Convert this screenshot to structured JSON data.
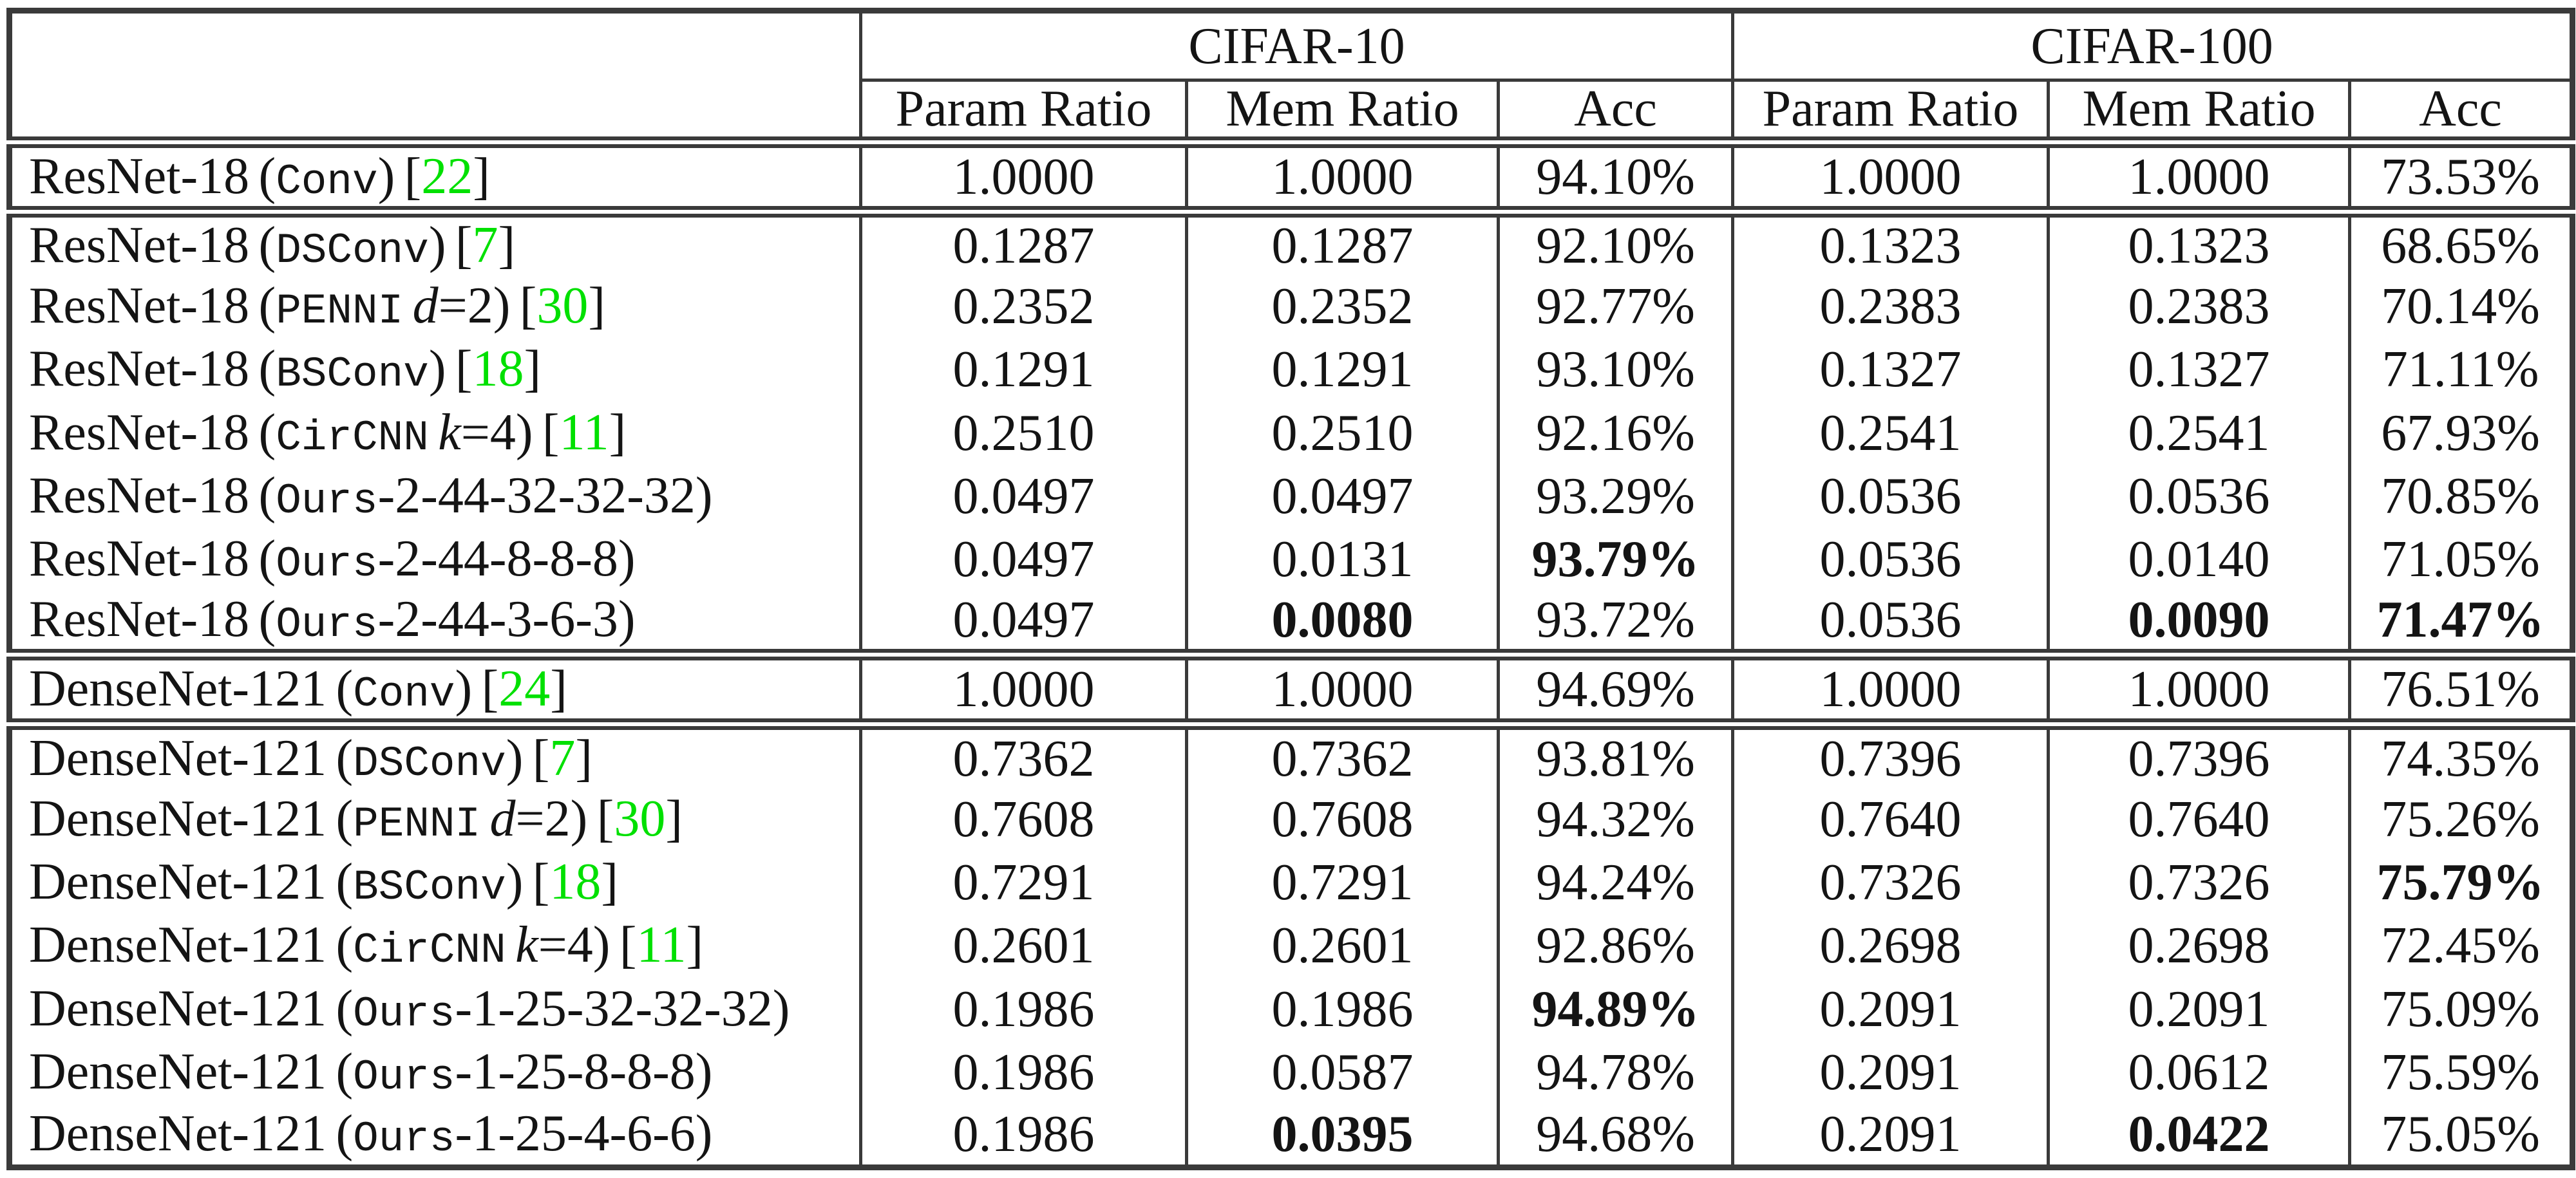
{
  "table": {
    "groups": [
      "CIFAR-10",
      "CIFAR-100"
    ],
    "sub_headers": [
      "Param Ratio",
      "Mem Ratio",
      "Acc"
    ],
    "punct": {
      "open": "(",
      "close": ")",
      "cite_open": "[",
      "cite_close": "]"
    },
    "colors": {
      "citation_green": "#00E000",
      "border": "#3a3a3a"
    },
    "rows": [
      {
        "family": "ResNet-18",
        "method": "Conv",
        "mvar": "",
        "tail": "",
        "cite": "22",
        "double_top": true,
        "values": [
          "1.0000",
          "1.0000",
          "94.10%",
          "1.0000",
          "1.0000",
          "73.53%"
        ],
        "bold": [
          0,
          0,
          0,
          0,
          0,
          0
        ]
      },
      {
        "family": "ResNet-18",
        "method": "DSConv",
        "mvar": "",
        "tail": "",
        "cite": "7",
        "double_top": true,
        "values": [
          "0.1287",
          "0.1287",
          "92.10%",
          "0.1323",
          "0.1323",
          "68.65%"
        ],
        "bold": [
          0,
          0,
          0,
          0,
          0,
          0
        ]
      },
      {
        "family": "ResNet-18",
        "method": "PENNI",
        "mvar": "d",
        "tail": "=2",
        "cite": "30",
        "double_top": false,
        "values": [
          "0.2352",
          "0.2352",
          "92.77%",
          "0.2383",
          "0.2383",
          "70.14%"
        ],
        "bold": [
          0,
          0,
          0,
          0,
          0,
          0
        ]
      },
      {
        "family": "ResNet-18",
        "method": "BSConv",
        "mvar": "",
        "tail": "",
        "cite": "18",
        "double_top": false,
        "values": [
          "0.1291",
          "0.1291",
          "93.10%",
          "0.1327",
          "0.1327",
          "71.11%"
        ],
        "bold": [
          0,
          0,
          0,
          0,
          0,
          0
        ]
      },
      {
        "family": "ResNet-18",
        "method": "CirCNN",
        "mvar": "k",
        "tail": "=4",
        "cite": "11",
        "double_top": false,
        "values": [
          "0.2510",
          "0.2510",
          "92.16%",
          "0.2541",
          "0.2541",
          "67.93%"
        ],
        "bold": [
          0,
          0,
          0,
          0,
          0,
          0
        ]
      },
      {
        "family": "ResNet-18",
        "method": "Ours",
        "mvar": "",
        "tail": "-2-44-32-32-32",
        "cite": "",
        "double_top": false,
        "values": [
          "0.0497",
          "0.0497",
          "93.29%",
          "0.0536",
          "0.0536",
          "70.85%"
        ],
        "bold": [
          0,
          0,
          0,
          0,
          0,
          0
        ]
      },
      {
        "family": "ResNet-18",
        "method": "Ours",
        "mvar": "",
        "tail": "-2-44-8-8-8",
        "cite": "",
        "double_top": false,
        "values": [
          "0.0497",
          "0.0131",
          "93.79%",
          "0.0536",
          "0.0140",
          "71.05%"
        ],
        "bold": [
          0,
          0,
          1,
          0,
          0,
          0
        ]
      },
      {
        "family": "ResNet-18",
        "method": "Ours",
        "mvar": "",
        "tail": "-2-44-3-6-3",
        "cite": "",
        "double_top": false,
        "values": [
          "0.0497",
          "0.0080",
          "93.72%",
          "0.0536",
          "0.0090",
          "71.47%"
        ],
        "bold": [
          0,
          1,
          0,
          0,
          1,
          1
        ]
      },
      {
        "family": "DenseNet-121",
        "method": "Conv",
        "mvar": "",
        "tail": "",
        "cite": "24",
        "double_top": true,
        "values": [
          "1.0000",
          "1.0000",
          "94.69%",
          "1.0000",
          "1.0000",
          "76.51%"
        ],
        "bold": [
          0,
          0,
          0,
          0,
          0,
          0
        ]
      },
      {
        "family": "DenseNet-121",
        "method": "DSConv",
        "mvar": "",
        "tail": "",
        "cite": "7",
        "double_top": true,
        "values": [
          "0.7362",
          "0.7362",
          "93.81%",
          "0.7396",
          "0.7396",
          "74.35%"
        ],
        "bold": [
          0,
          0,
          0,
          0,
          0,
          0
        ]
      },
      {
        "family": "DenseNet-121",
        "method": "PENNI",
        "mvar": "d",
        "tail": "=2",
        "cite": "30",
        "double_top": false,
        "values": [
          "0.7608",
          "0.7608",
          "94.32%",
          "0.7640",
          "0.7640",
          "75.26%"
        ],
        "bold": [
          0,
          0,
          0,
          0,
          0,
          0
        ]
      },
      {
        "family": "DenseNet-121",
        "method": "BSConv",
        "mvar": "",
        "tail": "",
        "cite": "18",
        "double_top": false,
        "values": [
          "0.7291",
          "0.7291",
          "94.24%",
          "0.7326",
          "0.7326",
          "75.79%"
        ],
        "bold": [
          0,
          0,
          0,
          0,
          0,
          1
        ]
      },
      {
        "family": "DenseNet-121",
        "method": "CirCNN",
        "mvar": "k",
        "tail": "=4",
        "cite": "11",
        "double_top": false,
        "values": [
          "0.2601",
          "0.2601",
          "92.86%",
          "0.2698",
          "0.2698",
          "72.45%"
        ],
        "bold": [
          0,
          0,
          0,
          0,
          0,
          0
        ]
      },
      {
        "family": "DenseNet-121",
        "method": "Ours",
        "mvar": "",
        "tail": "-1-25-32-32-32",
        "cite": "",
        "double_top": false,
        "values": [
          "0.1986",
          "0.1986",
          "94.89%",
          "0.2091",
          "0.2091",
          "75.09%"
        ],
        "bold": [
          0,
          0,
          1,
          0,
          0,
          0
        ]
      },
      {
        "family": "DenseNet-121",
        "method": "Ours",
        "mvar": "",
        "tail": "-1-25-8-8-8",
        "cite": "",
        "double_top": false,
        "values": [
          "0.1986",
          "0.0587",
          "94.78%",
          "0.2091",
          "0.0612",
          "75.59%"
        ],
        "bold": [
          0,
          0,
          0,
          0,
          0,
          0
        ]
      },
      {
        "family": "DenseNet-121",
        "method": "Ours",
        "mvar": "",
        "tail": "-1-25-4-6-6",
        "cite": "",
        "double_top": false,
        "values": [
          "0.1986",
          "0.0395",
          "94.68%",
          "0.2091",
          "0.0422",
          "75.05%"
        ],
        "bold": [
          0,
          1,
          0,
          0,
          1,
          0
        ]
      }
    ]
  }
}
